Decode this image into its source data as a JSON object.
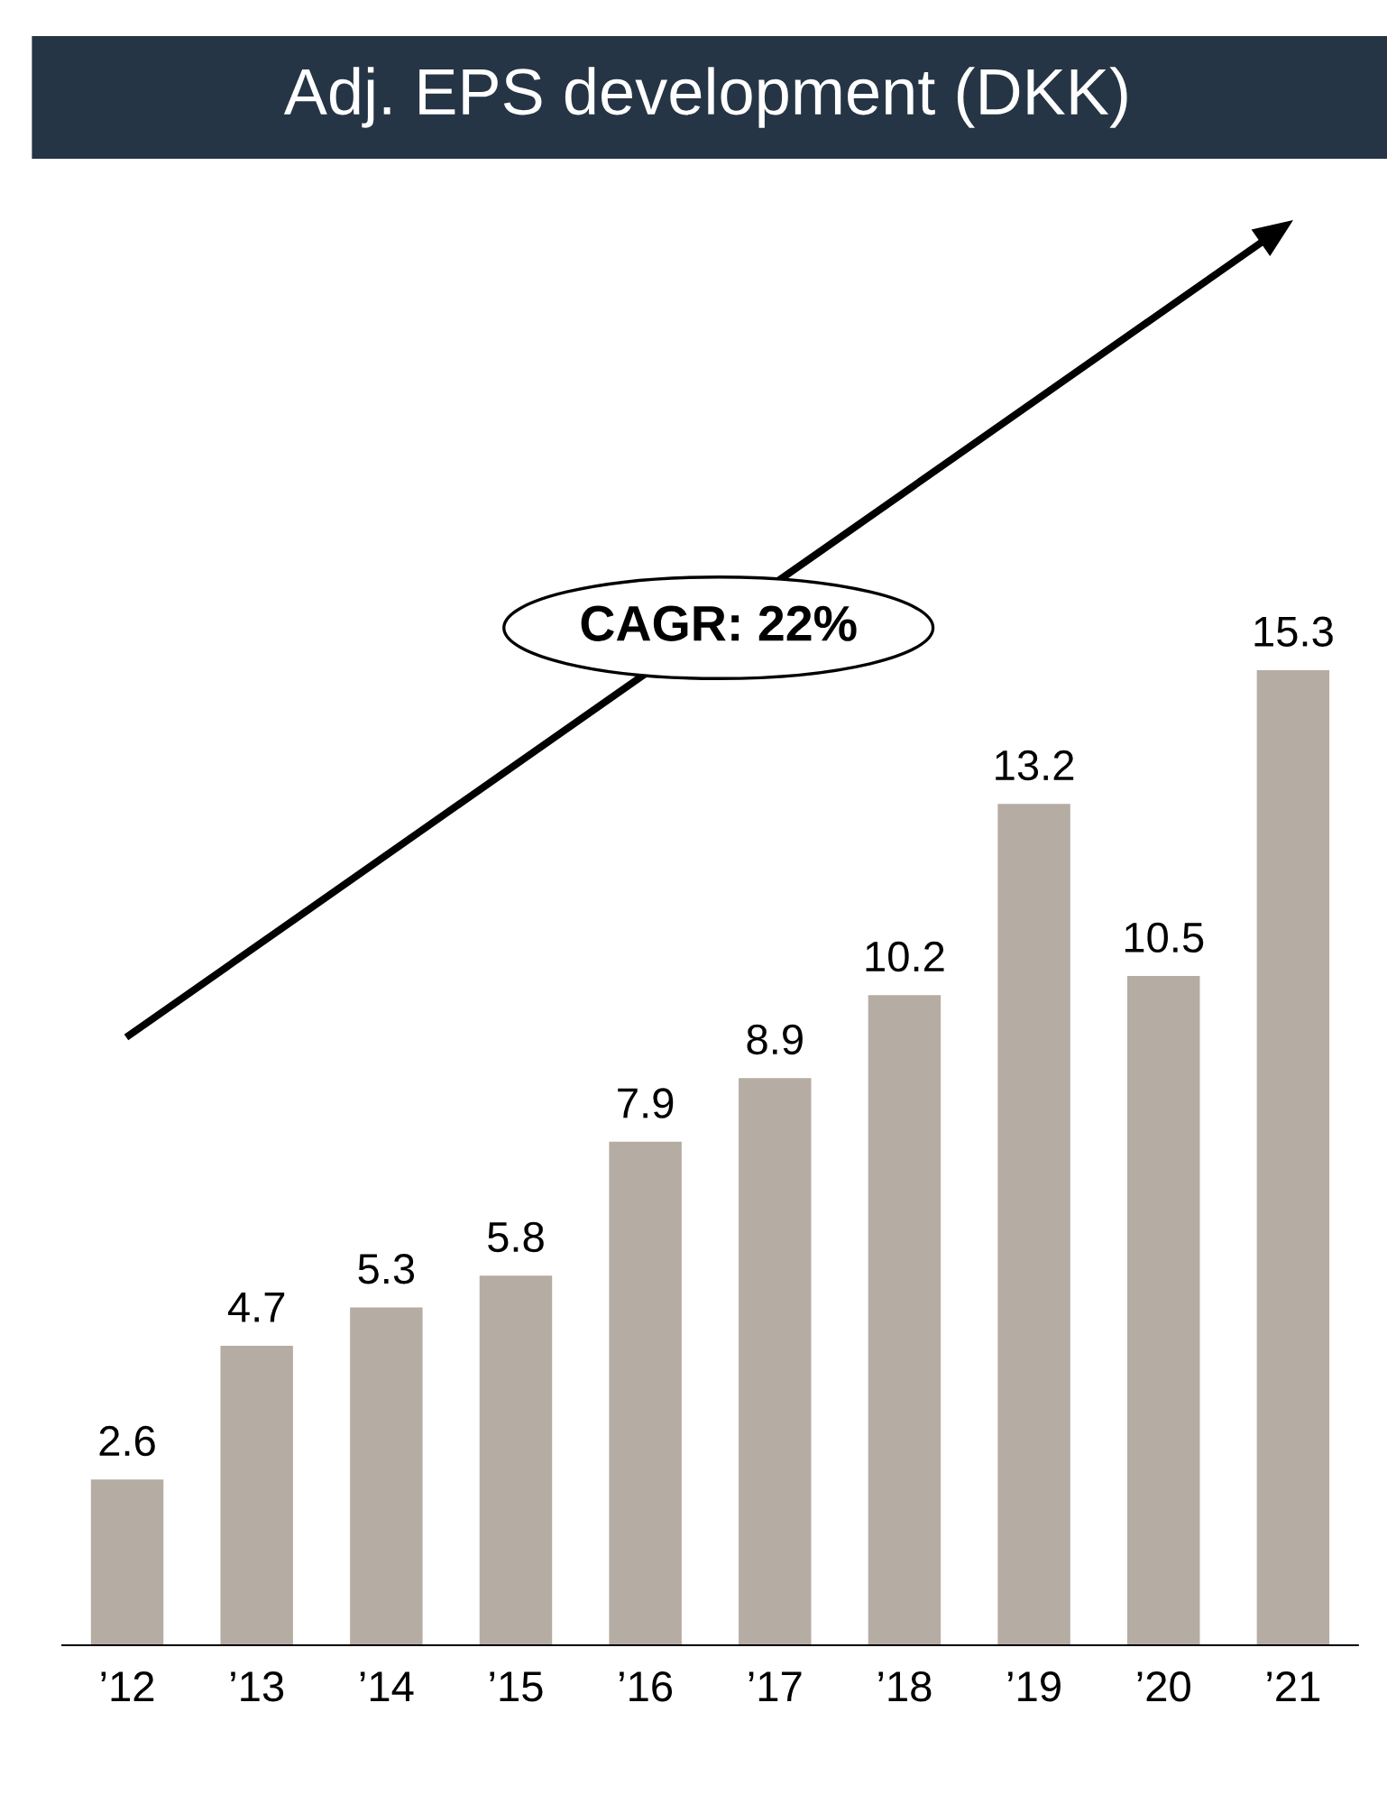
{
  "chart_data": {
    "type": "bar",
    "title": "Adj. EPS development (DKK)",
    "categories": [
      "’12",
      "’13",
      "’14",
      "’15",
      "’16",
      "’17",
      "’18",
      "’19",
      "’20",
      "’21"
    ],
    "values": [
      2.6,
      4.7,
      5.3,
      5.8,
      7.9,
      8.9,
      10.2,
      13.2,
      10.5,
      15.3
    ],
    "color": "#b5aca3",
    "data_labels": true,
    "grid": false,
    "legend": false,
    "annotations": [
      "CAGR: 22%"
    ]
  }
}
